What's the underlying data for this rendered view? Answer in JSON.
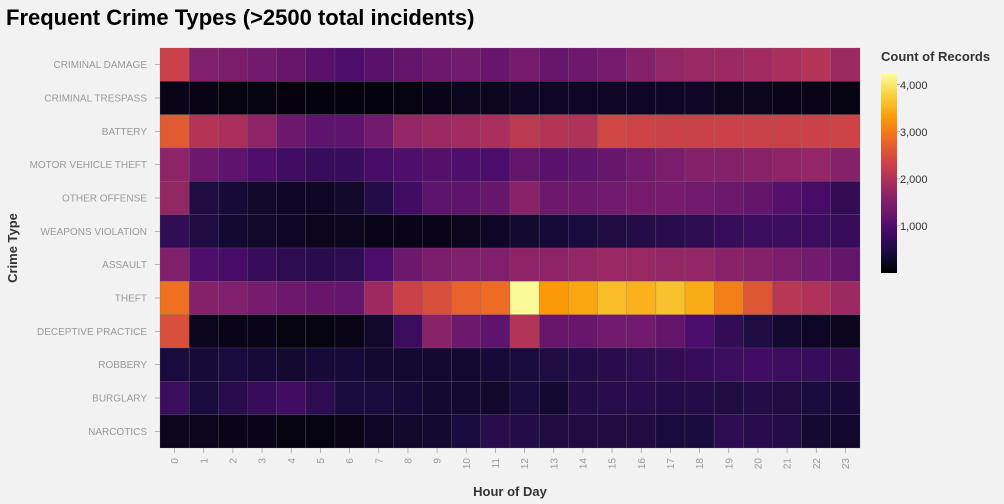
{
  "chart_data": {
    "type": "heatmap",
    "title": "Frequent Crime Types (>2500 total incidents)",
    "xlabel": "Hour of Day",
    "ylabel": "Crime Type",
    "x": [
      "0",
      "1",
      "2",
      "3",
      "4",
      "5",
      "6",
      "7",
      "8",
      "9",
      "10",
      "11",
      "12",
      "13",
      "14",
      "15",
      "16",
      "17",
      "18",
      "19",
      "20",
      "21",
      "22",
      "23"
    ],
    "y": [
      "CRIMINAL DAMAGE",
      "CRIMINAL TRESPASS",
      "BATTERY",
      "MOTOR VEHICLE THEFT",
      "OTHER OFFENSE",
      "WEAPONS VIOLATION",
      "ASSAULT",
      "THEFT",
      "DECEPTIVE PRACTICE",
      "ROBBERY",
      "BURGLARY",
      "NARCOTICS"
    ],
    "values": [
      [
        2300,
        1500,
        1450,
        1350,
        1250,
        1100,
        1000,
        1100,
        1200,
        1300,
        1350,
        1250,
        1400,
        1250,
        1300,
        1400,
        1550,
        1700,
        1750,
        1800,
        1850,
        1950,
        2050,
        1800
      ],
      [
        150,
        120,
        100,
        100,
        80,
        70,
        70,
        90,
        100,
        150,
        200,
        200,
        250,
        250,
        250,
        250,
        250,
        250,
        250,
        200,
        200,
        150,
        150,
        100
      ],
      [
        2650,
        2050,
        1950,
        1650,
        1300,
        1150,
        1150,
        1350,
        1700,
        1800,
        1850,
        1950,
        2150,
        2050,
        2000,
        2400,
        2350,
        2300,
        2300,
        2300,
        2300,
        2300,
        2300,
        2350
      ],
      [
        1650,
        1300,
        1150,
        1000,
        850,
        750,
        750,
        900,
        1000,
        1050,
        1000,
        950,
        1200,
        1100,
        1150,
        1250,
        1350,
        1450,
        1550,
        1550,
        1600,
        1650,
        1700,
        1550
      ],
      [
        1700,
        500,
        400,
        300,
        250,
        250,
        300,
        550,
        850,
        1150,
        1150,
        1250,
        1600,
        1300,
        1300,
        1350,
        1400,
        1400,
        1350,
        1300,
        1200,
        1050,
        900,
        700
      ],
      [
        700,
        500,
        350,
        300,
        250,
        200,
        200,
        150,
        150,
        150,
        200,
        250,
        350,
        400,
        450,
        500,
        550,
        600,
        650,
        750,
        800,
        800,
        800,
        750
      ],
      [
        1500,
        1000,
        900,
        750,
        650,
        600,
        650,
        950,
        1300,
        1450,
        1500,
        1500,
        1650,
        1650,
        1700,
        1750,
        1750,
        1700,
        1700,
        1600,
        1550,
        1450,
        1350,
        1200
      ],
      [
        2900,
        1550,
        1500,
        1400,
        1300,
        1250,
        1200,
        1800,
        2300,
        2500,
        2750,
        2850,
        4200,
        3300,
        3400,
        3600,
        3500,
        3650,
        3450,
        3050,
        2600,
        2100,
        2000,
        1800
      ],
      [
        2500,
        200,
        150,
        150,
        100,
        100,
        150,
        300,
        800,
        1600,
        1300,
        1150,
        2050,
        1250,
        1250,
        1350,
        1350,
        1200,
        950,
        700,
        500,
        350,
        250,
        200
      ],
      [
        450,
        400,
        450,
        400,
        350,
        400,
        400,
        350,
        350,
        350,
        350,
        400,
        450,
        500,
        550,
        600,
        650,
        700,
        750,
        800,
        850,
        800,
        750,
        700
      ],
      [
        800,
        450,
        600,
        750,
        850,
        650,
        450,
        450,
        400,
        350,
        350,
        300,
        450,
        350,
        550,
        600,
        600,
        550,
        550,
        500,
        550,
        500,
        450,
        400
      ],
      [
        200,
        200,
        150,
        150,
        100,
        100,
        150,
        250,
        300,
        350,
        450,
        600,
        550,
        500,
        500,
        500,
        500,
        450,
        450,
        650,
        600,
        550,
        350,
        300
      ]
    ],
    "legend": {
      "title": "Count of Records",
      "ticks": [
        "1,000",
        "2,000",
        "3,000",
        "4,000"
      ],
      "tick_values": [
        1000,
        2000,
        3000,
        4000
      ],
      "domain": [
        0,
        4250
      ],
      "position": "top-right",
      "colormap": [
        "#000004",
        "#1b0c41",
        "#4a0c6b",
        "#781c6d",
        "#a52c60",
        "#cf4446",
        "#ed6925",
        "#fb9b06",
        "#f7d13d",
        "#fcffa4"
      ]
    },
    "grid": false
  }
}
